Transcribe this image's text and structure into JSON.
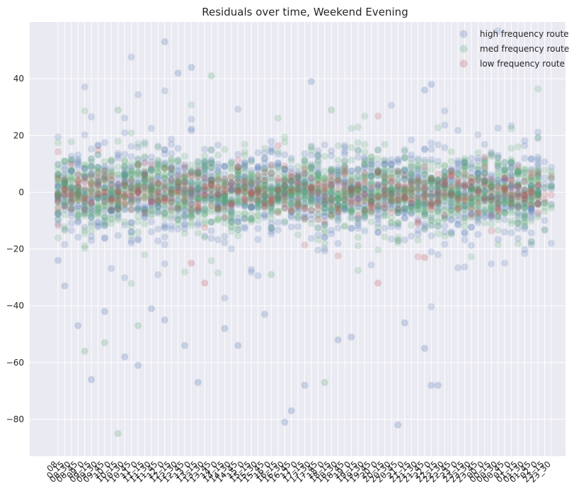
{
  "chart_data": {
    "type": "scatter",
    "title": "Residuals over time, Weekend Evening",
    "xlabel": "",
    "ylabel": "",
    "ylim": [
      -93,
      60
    ],
    "yticks": [
      -80,
      -60,
      -40,
      -20,
      0,
      20,
      40
    ],
    "grid": true,
    "legend_position": "top-right",
    "background_color": "#eaeaf2",
    "grid_color": "#ffffff",
    "x_categories": [
      "08",
      "0_15",
      "08_30",
      "08_45",
      "09_0",
      "09_15",
      "09_30",
      "09_45",
      "10_0",
      "10_15",
      "10_30",
      "10_45",
      "11_0",
      "11_15",
      "11_30",
      "11_45",
      "12_0",
      "12_15",
      "12_30",
      "12_45",
      "13_0",
      "13_15",
      "13_30",
      "13_45",
      "14_0",
      "14_15",
      "14_30",
      "14_45",
      "15_0",
      "15_15",
      "15_30",
      "15_45",
      "16_0",
      "16_15",
      "16_30",
      "16_45",
      "17_0",
      "17_15",
      "17_30",
      "17_45",
      "18_0",
      "18_15",
      "18_30",
      "18_45",
      "19_0",
      "19_15",
      "19_30",
      "19_45",
      "20_0",
      "20_15",
      "20_30",
      "20_45",
      "21_0",
      "21_15",
      "21_30",
      "21_45",
      "22_0",
      "22_15",
      "22_30",
      "22_45",
      "23_0",
      "23_15",
      "23_30",
      "23_45",
      "00_0",
      "00_15",
      "00_30",
      "00_45",
      "01_0",
      "01_15",
      "01_30",
      "01_45",
      "02_0",
      "23_15",
      "23_30"
    ],
    "series": [
      {
        "name": "high frequency route",
        "color": "#4c72b0",
        "opacity": 0.2,
        "points_per_category": 22,
        "spread_sd": 7,
        "notable_points": [
          [
            0,
            -24
          ],
          [
            1,
            -33
          ],
          [
            3,
            -47
          ],
          [
            5,
            -66
          ],
          [
            7,
            -42
          ],
          [
            10,
            -58
          ],
          [
            12,
            -61
          ],
          [
            14,
            -41
          ],
          [
            16,
            -45
          ],
          [
            19,
            -54
          ],
          [
            21,
            -67
          ],
          [
            25,
            -48
          ],
          [
            27,
            -54
          ],
          [
            31,
            -43
          ],
          [
            34,
            -81
          ],
          [
            35,
            -77
          ],
          [
            37,
            -68
          ],
          [
            42,
            -52
          ],
          [
            44,
            -51
          ],
          [
            51,
            -82
          ],
          [
            52,
            -46
          ],
          [
            55,
            -55
          ],
          [
            56,
            -68
          ],
          [
            57,
            -68
          ],
          [
            20,
            44
          ],
          [
            16,
            53
          ],
          [
            18,
            42
          ],
          [
            38,
            39
          ],
          [
            56,
            38
          ],
          [
            55,
            36
          ]
        ]
      },
      {
        "name": "med frequency route",
        "color": "#55a868",
        "opacity": 0.2,
        "points_per_category": 22,
        "spread_sd": 6,
        "notable_points": [
          [
            4,
            -56
          ],
          [
            7,
            -53
          ],
          [
            9,
            -85
          ],
          [
            12,
            -47
          ],
          [
            32,
            -29
          ],
          [
            40,
            -67
          ],
          [
            23,
            41
          ],
          [
            9,
            29
          ],
          [
            41,
            29
          ]
        ]
      },
      {
        "name": "low frequency route",
        "color": "#c44e52",
        "opacity": 0.2,
        "points_per_category": 7,
        "spread_sd": 4,
        "notable_points": [
          [
            22,
            -32
          ],
          [
            48,
            -32
          ],
          [
            20,
            -25
          ],
          [
            55,
            -23
          ]
        ]
      }
    ]
  }
}
